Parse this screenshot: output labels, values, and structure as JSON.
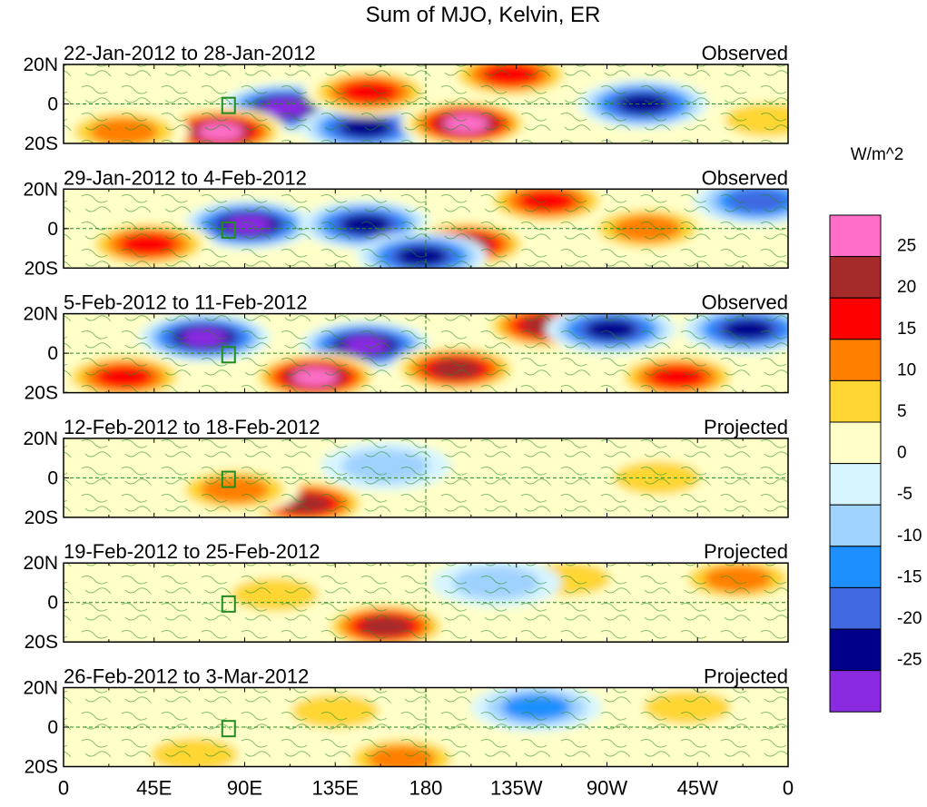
{
  "chart_data": {
    "type": "heatmap",
    "title": "Sum of MJO, Kelvin, ER",
    "variable_units": "W/m^2",
    "x_ticks": [
      "0",
      "45E",
      "90E",
      "135E",
      "180",
      "135W",
      "90W",
      "45W",
      "0"
    ],
    "x_range_deg": [
      0,
      360
    ],
    "y_ticks": [
      "20N",
      "0",
      "20S"
    ],
    "y_range_deg": [
      -20,
      20
    ],
    "colorbar": {
      "labels": [
        "25",
        "20",
        "15",
        "10",
        "5",
        "0",
        "-5",
        "-10",
        "-15",
        "-20",
        "-25"
      ],
      "levels": [
        -25,
        -20,
        -15,
        -10,
        -5,
        0,
        5,
        10,
        15,
        20,
        25
      ],
      "colors": [
        "#ff6ec7",
        "#a52a2a",
        "#ff0000",
        "#ff7f00",
        "#ffd633",
        "#ffffc8",
        "#d7f5ff",
        "#a0d2ff",
        "#1e8fff",
        "#4169e1",
        "#00008b",
        "#8a2be2"
      ]
    },
    "panels": [
      {
        "period": "22-Jan-2012 to 28-Jan-2012",
        "status": "Observed",
        "features": [
          {
            "lon": 110,
            "lat": -2,
            "value": -30
          },
          {
            "lon": 150,
            "lat": -12,
            "value": -22
          },
          {
            "lon": 200,
            "lat": -10,
            "value": 28
          },
          {
            "lon": 152,
            "lat": 6,
            "value": 18
          },
          {
            "lon": 78,
            "lat": -14,
            "value": 26
          },
          {
            "lon": 30,
            "lat": -14,
            "value": 15
          },
          {
            "lon": 288,
            "lat": 0,
            "value": -22
          },
          {
            "lon": 222,
            "lat": 15,
            "value": 16
          },
          {
            "lon": 350,
            "lat": -8,
            "value": 10
          }
        ]
      },
      {
        "period": "29-Jan-2012 to 4-Feb-2012",
        "status": "Observed",
        "features": [
          {
            "lon": 92,
            "lat": 2,
            "value": -30
          },
          {
            "lon": 150,
            "lat": 2,
            "value": -24
          },
          {
            "lon": 200,
            "lat": -8,
            "value": 22
          },
          {
            "lon": 42,
            "lat": -8,
            "value": 16
          },
          {
            "lon": 240,
            "lat": 14,
            "value": 16
          },
          {
            "lon": 178,
            "lat": -14,
            "value": -24
          },
          {
            "lon": 290,
            "lat": 0,
            "value": 14
          },
          {
            "lon": 345,
            "lat": 14,
            "value": -18
          }
        ]
      },
      {
        "period": "5-Feb-2012 to 11-Feb-2012",
        "status": "Observed",
        "features": [
          {
            "lon": 70,
            "lat": 8,
            "value": -26
          },
          {
            "lon": 150,
            "lat": 4,
            "value": -28
          },
          {
            "lon": 125,
            "lat": -12,
            "value": 26
          },
          {
            "lon": 195,
            "lat": -8,
            "value": 24
          },
          {
            "lon": 240,
            "lat": 14,
            "value": 22
          },
          {
            "lon": 272,
            "lat": 12,
            "value": -24
          },
          {
            "lon": 305,
            "lat": -12,
            "value": 18
          },
          {
            "lon": 30,
            "lat": -12,
            "value": 16
          },
          {
            "lon": 340,
            "lat": 12,
            "value": -22
          }
        ]
      },
      {
        "period": "12-Feb-2012 to 18-Feb-2012",
        "status": "Projected",
        "features": [
          {
            "lon": 120,
            "lat": -13,
            "value": 24
          },
          {
            "lon": 85,
            "lat": -6,
            "value": 12
          },
          {
            "lon": 160,
            "lat": 6,
            "value": -6
          },
          {
            "lon": 295,
            "lat": 0,
            "value": 6
          }
        ]
      },
      {
        "period": "19-Feb-2012 to 25-Feb-2012",
        "status": "Projected",
        "features": [
          {
            "lon": 160,
            "lat": -12,
            "value": 22
          },
          {
            "lon": 105,
            "lat": 4,
            "value": 8
          },
          {
            "lon": 250,
            "lat": 12,
            "value": 10
          },
          {
            "lon": 335,
            "lat": 12,
            "value": 12
          },
          {
            "lon": 215,
            "lat": 10,
            "value": -8
          }
        ]
      },
      {
        "period": "26-Feb-2012 to 3-Mar-2012",
        "status": "Projected",
        "features": [
          {
            "lon": 168,
            "lat": -16,
            "value": 14
          },
          {
            "lon": 135,
            "lat": 8,
            "value": 8
          },
          {
            "lon": 235,
            "lat": 10,
            "value": -14
          },
          {
            "lon": 65,
            "lat": -14,
            "value": 6
          },
          {
            "lon": 310,
            "lat": 10,
            "value": 8
          }
        ]
      }
    ]
  }
}
